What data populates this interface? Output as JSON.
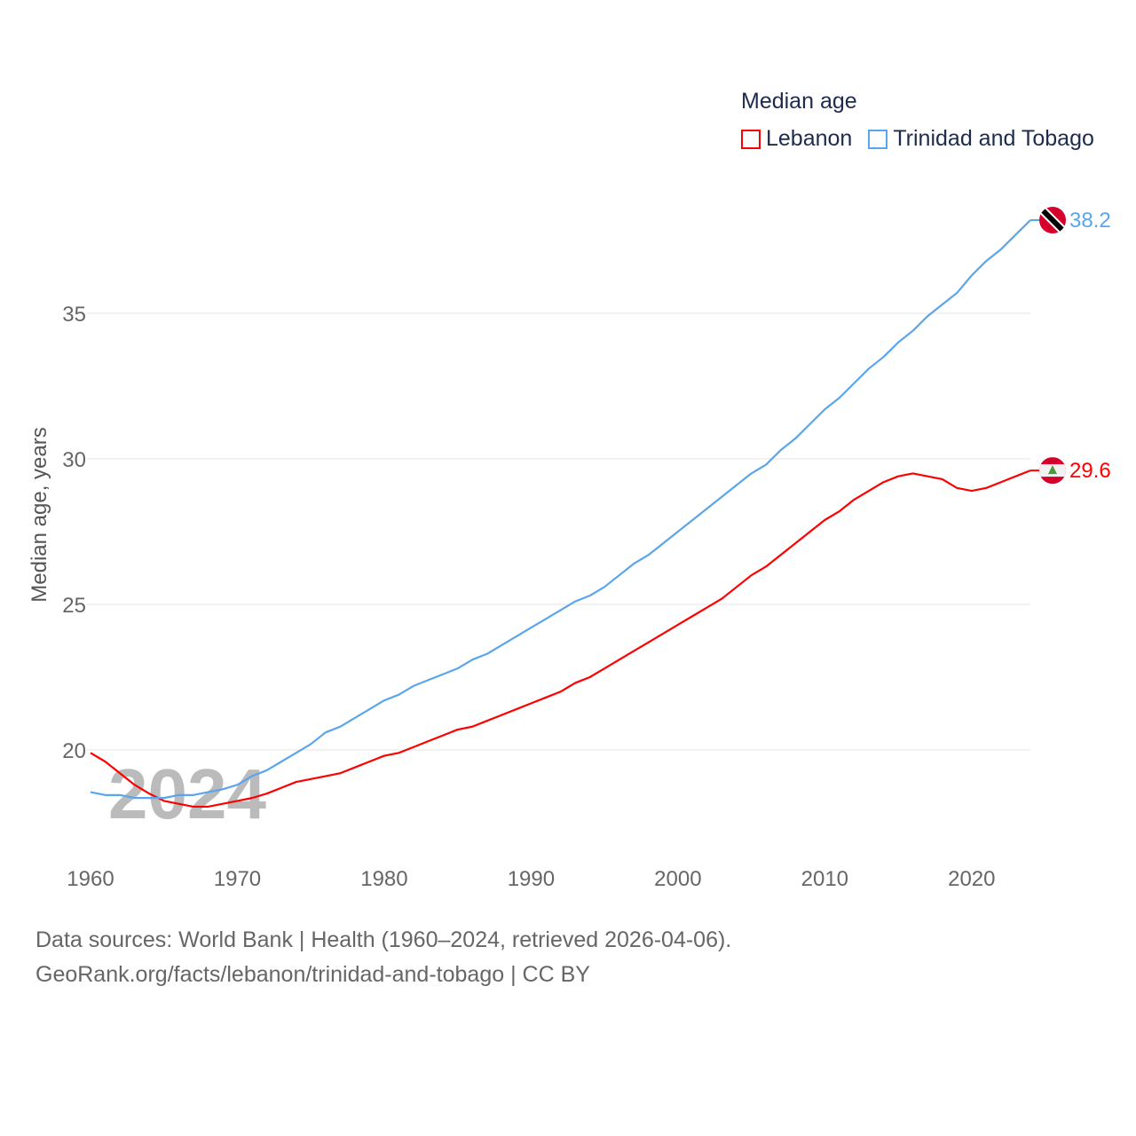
{
  "legend": {
    "title": "Median age"
  },
  "footer": {
    "line1": "Data sources: World Bank | Health (1960–2024, retrieved 2026-04-06).",
    "line2": "GeoRank.org/facts/lebanon/trinidad-and-tobago | CC BY"
  },
  "chart_data": {
    "type": "line",
    "title": "Median age",
    "xlabel": "",
    "ylabel": "Median age, years",
    "xlim": [
      1960,
      2024
    ],
    "ylim": [
      17,
      39.5
    ],
    "xticks": [
      1960,
      1970,
      1980,
      1990,
      2000,
      2010,
      2020
    ],
    "yticks": [
      20,
      25,
      30,
      35
    ],
    "grid": true,
    "legend_position": "top-right",
    "year_watermark": "2024",
    "x": [
      1960,
      1961,
      1962,
      1963,
      1964,
      1965,
      1966,
      1967,
      1968,
      1969,
      1970,
      1971,
      1972,
      1973,
      1974,
      1975,
      1976,
      1977,
      1978,
      1979,
      1980,
      1981,
      1982,
      1983,
      1984,
      1985,
      1986,
      1987,
      1988,
      1989,
      1990,
      1991,
      1992,
      1993,
      1994,
      1995,
      1996,
      1997,
      1998,
      1999,
      2000,
      2001,
      2002,
      2003,
      2004,
      2005,
      2006,
      2007,
      2008,
      2009,
      2010,
      2011,
      2012,
      2013,
      2014,
      2015,
      2016,
      2017,
      2018,
      2019,
      2020,
      2021,
      2022,
      2023,
      2024
    ],
    "series": [
      {
        "name": "Lebanon",
        "color": "#ff0000",
        "end_label": "29.6",
        "values": [
          19.9,
          19.6,
          19.2,
          18.8,
          18.5,
          18.25,
          18.15,
          18.05,
          18.05,
          18.15,
          18.25,
          18.35,
          18.5,
          18.7,
          18.9,
          19.0,
          19.1,
          19.2,
          19.4,
          19.6,
          19.8,
          19.9,
          20.1,
          20.3,
          20.5,
          20.7,
          20.8,
          21.0,
          21.2,
          21.4,
          21.6,
          21.8,
          22.0,
          22.3,
          22.5,
          22.8,
          23.1,
          23.4,
          23.7,
          24.0,
          24.3,
          24.6,
          24.9,
          25.2,
          25.6,
          26.0,
          26.3,
          26.7,
          27.1,
          27.5,
          27.9,
          28.2,
          28.6,
          28.9,
          29.2,
          29.4,
          29.5,
          29.4,
          29.3,
          29.0,
          28.9,
          29.0,
          29.2,
          29.4,
          29.6
        ]
      },
      {
        "name": "Trinidad and Tobago",
        "color": "#5aa5ec",
        "end_label": "38.2",
        "values": [
          18.55,
          18.45,
          18.45,
          18.35,
          18.35,
          18.35,
          18.45,
          18.45,
          18.55,
          18.65,
          18.8,
          19.1,
          19.3,
          19.6,
          19.9,
          20.2,
          20.6,
          20.8,
          21.1,
          21.4,
          21.7,
          21.9,
          22.2,
          22.4,
          22.6,
          22.8,
          23.1,
          23.3,
          23.6,
          23.9,
          24.2,
          24.5,
          24.8,
          25.1,
          25.3,
          25.6,
          26.0,
          26.4,
          26.7,
          27.1,
          27.5,
          27.9,
          28.3,
          28.7,
          29.1,
          29.5,
          29.8,
          30.3,
          30.7,
          31.2,
          31.7,
          32.1,
          32.6,
          33.1,
          33.5,
          34.0,
          34.4,
          34.9,
          35.3,
          35.7,
          36.3,
          36.8,
          37.2,
          37.7,
          38.2
        ]
      }
    ]
  }
}
